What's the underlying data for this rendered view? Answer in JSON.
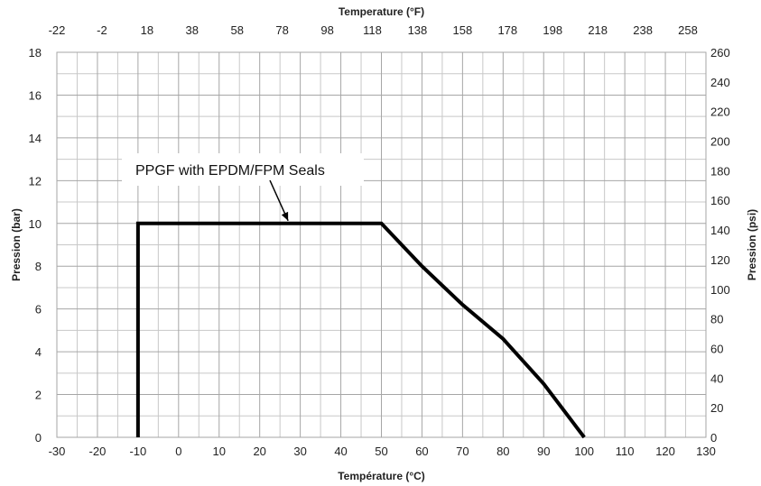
{
  "chart_data": {
    "type": "line",
    "title": "",
    "xlabel": "Température (°C)",
    "ylabel": "Pression (bar)",
    "x2label": "Temperature (°F)",
    "y2label": "Pression (psi)",
    "xlim": [
      -30,
      130
    ],
    "ylim": [
      0,
      18
    ],
    "y2lim": [
      0,
      260
    ],
    "grid": true,
    "x_ticks": [
      "-30",
      "-20",
      "-10",
      "0",
      "10",
      "20",
      "30",
      "40",
      "50",
      "60",
      "70",
      "80",
      "90",
      "100",
      "110",
      "120",
      "130"
    ],
    "y_ticks": [
      "0",
      "2",
      "4",
      "6",
      "8",
      "10",
      "12",
      "14",
      "16",
      "18"
    ],
    "x2_ticks": [
      "-22",
      "-2",
      "18",
      "38",
      "58",
      "78",
      "98",
      "118",
      "138",
      "158",
      "178",
      "198",
      "218",
      "238",
      "258"
    ],
    "y2_ticks": [
      "0",
      "20",
      "40",
      "60",
      "80",
      "100",
      "120",
      "140",
      "160",
      "180",
      "200",
      "220",
      "240",
      "260"
    ],
    "series": [
      {
        "name": "",
        "color": "#000000",
        "points": [
          [
            -10,
            0
          ],
          [
            -10,
            10
          ],
          [
            50,
            10
          ],
          [
            60,
            8
          ],
          [
            70,
            6.2
          ],
          [
            80,
            4.6
          ],
          [
            90,
            2.5
          ],
          [
            100,
            0
          ]
        ]
      }
    ],
    "annotation": {
      "text": "PPGF with EPDM/FPM Seals",
      "target": [
        27,
        10
      ]
    }
  }
}
